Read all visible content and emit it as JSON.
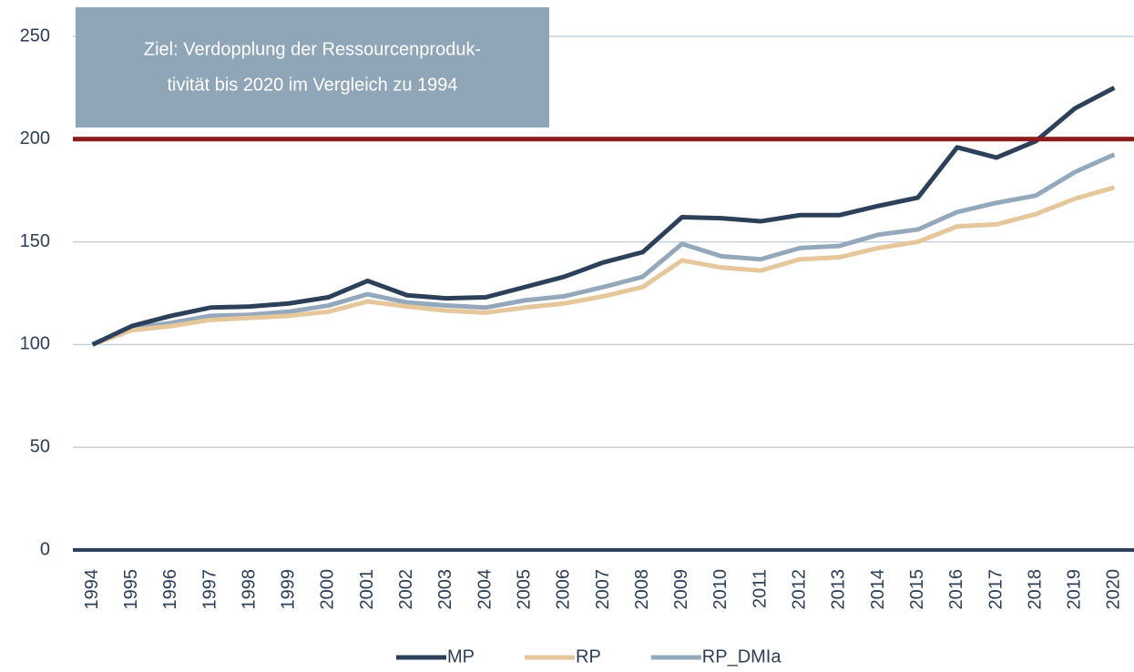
{
  "chart_data": {
    "type": "line",
    "annotation": [
      "Ziel: Verdopplung der Ressourcenproduk-",
      "tivität bis 2020 im Vergleich zu 1994"
    ],
    "categories": [
      "1994",
      "1995",
      "1996",
      "1997",
      "1998",
      "1999",
      "2000",
      "2001",
      "2002",
      "2003",
      "2004",
      "2005",
      "2006",
      "2007",
      "2008",
      "2009",
      "2010",
      "2011",
      "2012",
      "2013",
      "2014",
      "2015",
      "2016",
      "2017",
      "2018",
      "2019",
      "2020"
    ],
    "series": [
      {
        "name": "MP",
        "color": "#2d4059",
        "values": [
          100,
          109,
          114,
          118,
          118.5,
          120,
          123,
          131,
          124,
          122.5,
          123,
          128,
          133,
          140,
          145,
          162,
          161.5,
          160,
          163,
          163,
          167.5,
          171.5,
          196,
          191,
          199,
          215,
          225
        ]
      },
      {
        "name": "RP",
        "color": "#e6c79c",
        "values": [
          100,
          107,
          109,
          112,
          113,
          114,
          116,
          121,
          118.5,
          116.5,
          115.5,
          118,
          120,
          123.5,
          128,
          141,
          137.5,
          136,
          141.5,
          142.5,
          147,
          150,
          157.5,
          158.5,
          163.5,
          171,
          176.5
        ]
      },
      {
        "name": "RP_DMIa",
        "color": "#94a8bc",
        "values": [
          100,
          108,
          110.5,
          114,
          114.5,
          116,
          119,
          124.5,
          120.5,
          119,
          118,
          121.5,
          123.5,
          128,
          133,
          149,
          143,
          141.5,
          147,
          148,
          153.5,
          156,
          164.5,
          169,
          172.5,
          184,
          192.5
        ]
      }
    ],
    "target": 200,
    "target_color": "#8b1a1a",
    "ylim": [
      0,
      250
    ],
    "yticks": [
      0,
      50,
      100,
      150,
      200,
      250
    ],
    "grid": true
  }
}
